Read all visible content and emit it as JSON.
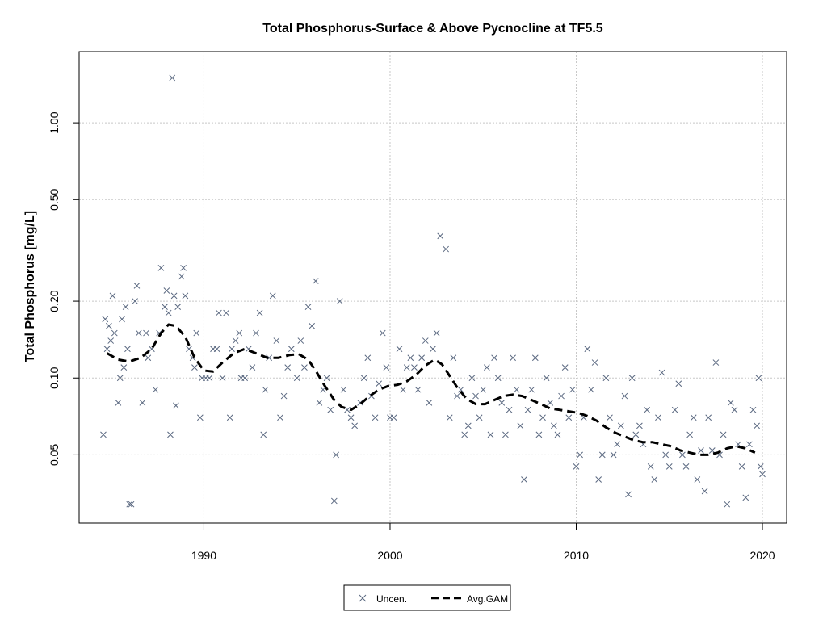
{
  "chart_data": {
    "type": "scatter",
    "title": "Total Phosphorus-Surface & Above Pycnocline at TF5.5",
    "xlabel": "",
    "ylabel": "Total Phosphorus [mg/L]",
    "x_scale": "linear",
    "y_scale": "log",
    "xlim": [
      1983.3,
      2021.3
    ],
    "ylim": [
      0.027,
      1.9
    ],
    "x_ticks": [
      1990,
      2000,
      2010,
      2020
    ],
    "x_tick_labels": [
      "1990",
      "2000",
      "2010",
      "2020"
    ],
    "y_ticks": [
      0.05,
      0.1,
      0.2,
      0.5,
      1.0
    ],
    "y_tick_labels": [
      "0.05",
      "0.10",
      "0.20",
      "0.50",
      "1.00"
    ],
    "grid": true,
    "legend_position": "bottom-center",
    "legend": [
      {
        "label": "Uncen.",
        "marker": "x",
        "color": "#5a6880"
      },
      {
        "label": "Avg.GAM",
        "line": "dashed",
        "color": "#000000"
      }
    ],
    "series": [
      {
        "name": "Uncen.",
        "marker": "x",
        "color": "#5a6880",
        "points": [
          [
            1984.6,
            0.06
          ],
          [
            1984.7,
            0.17
          ],
          [
            1984.8,
            0.13
          ],
          [
            1984.9,
            0.16
          ],
          [
            1985.0,
            0.14
          ],
          [
            1985.1,
            0.21
          ],
          [
            1985.2,
            0.15
          ],
          [
            1985.4,
            0.08
          ],
          [
            1985.5,
            0.1
          ],
          [
            1985.6,
            0.17
          ],
          [
            1985.7,
            0.11
          ],
          [
            1985.8,
            0.19
          ],
          [
            1985.9,
            0.13
          ],
          [
            1986.0,
            0.032
          ],
          [
            1986.1,
            0.032
          ],
          [
            1986.3,
            0.2
          ],
          [
            1986.4,
            0.23
          ],
          [
            1986.5,
            0.15
          ],
          [
            1986.7,
            0.08
          ],
          [
            1986.9,
            0.15
          ],
          [
            1987.0,
            0.12
          ],
          [
            1987.2,
            0.13
          ],
          [
            1987.4,
            0.09
          ],
          [
            1987.6,
            0.15
          ],
          [
            1987.7,
            0.27
          ],
          [
            1987.9,
            0.19
          ],
          [
            1988.0,
            0.22
          ],
          [
            1988.1,
            0.18
          ],
          [
            1988.2,
            0.06
          ],
          [
            1988.3,
            1.5
          ],
          [
            1988.4,
            0.21
          ],
          [
            1988.5,
            0.078
          ],
          [
            1988.6,
            0.19
          ],
          [
            1988.8,
            0.25
          ],
          [
            1988.9,
            0.27
          ],
          [
            1989.0,
            0.21
          ],
          [
            1989.2,
            0.13
          ],
          [
            1989.4,
            0.12
          ],
          [
            1989.5,
            0.11
          ],
          [
            1989.6,
            0.15
          ],
          [
            1989.8,
            0.07
          ],
          [
            1989.9,
            0.1
          ],
          [
            1990.1,
            0.1
          ],
          [
            1990.3,
            0.1
          ],
          [
            1990.5,
            0.13
          ],
          [
            1990.7,
            0.13
          ],
          [
            1990.8,
            0.18
          ],
          [
            1991.0,
            0.1
          ],
          [
            1991.2,
            0.18
          ],
          [
            1991.4,
            0.07
          ],
          [
            1991.5,
            0.13
          ],
          [
            1991.7,
            0.14
          ],
          [
            1991.9,
            0.15
          ],
          [
            1992.0,
            0.1
          ],
          [
            1992.2,
            0.1
          ],
          [
            1992.4,
            0.13
          ],
          [
            1992.6,
            0.11
          ],
          [
            1992.8,
            0.15
          ],
          [
            1993.0,
            0.18
          ],
          [
            1993.2,
            0.06
          ],
          [
            1993.3,
            0.09
          ],
          [
            1993.5,
            0.12
          ],
          [
            1993.7,
            0.21
          ],
          [
            1993.9,
            0.14
          ],
          [
            1994.1,
            0.07
          ],
          [
            1994.3,
            0.085
          ],
          [
            1994.5,
            0.11
          ],
          [
            1994.7,
            0.13
          ],
          [
            1995.0,
            0.1
          ],
          [
            1995.2,
            0.14
          ],
          [
            1995.4,
            0.11
          ],
          [
            1995.6,
            0.19
          ],
          [
            1995.8,
            0.16
          ],
          [
            1996.0,
            0.24
          ],
          [
            1996.2,
            0.08
          ],
          [
            1996.4,
            0.09
          ],
          [
            1996.6,
            0.1
          ],
          [
            1996.8,
            0.075
          ],
          [
            1997.0,
            0.033
          ],
          [
            1997.1,
            0.05
          ],
          [
            1997.3,
            0.2
          ],
          [
            1997.5,
            0.09
          ],
          [
            1997.7,
            0.075
          ],
          [
            1997.9,
            0.07
          ],
          [
            1998.1,
            0.065
          ],
          [
            1998.4,
            0.08
          ],
          [
            1998.6,
            0.1
          ],
          [
            1998.8,
            0.12
          ],
          [
            1999.0,
            0.085
          ],
          [
            1999.2,
            0.07
          ],
          [
            1999.4,
            0.095
          ],
          [
            1999.6,
            0.15
          ],
          [
            1999.8,
            0.11
          ],
          [
            2000.0,
            0.07
          ],
          [
            2000.2,
            0.07
          ],
          [
            2000.5,
            0.13
          ],
          [
            2000.7,
            0.09
          ],
          [
            2000.9,
            0.11
          ],
          [
            2001.1,
            0.12
          ],
          [
            2001.3,
            0.11
          ],
          [
            2001.5,
            0.09
          ],
          [
            2001.7,
            0.12
          ],
          [
            2001.9,
            0.14
          ],
          [
            2002.1,
            0.08
          ],
          [
            2002.3,
            0.13
          ],
          [
            2002.5,
            0.15
          ],
          [
            2002.7,
            0.36
          ],
          [
            2003.0,
            0.32
          ],
          [
            2003.2,
            0.07
          ],
          [
            2003.4,
            0.12
          ],
          [
            2003.6,
            0.085
          ],
          [
            2003.8,
            0.09
          ],
          [
            2004.0,
            0.06
          ],
          [
            2004.2,
            0.065
          ],
          [
            2004.4,
            0.1
          ],
          [
            2004.6,
            0.085
          ],
          [
            2004.8,
            0.07
          ],
          [
            2005.0,
            0.09
          ],
          [
            2005.2,
            0.11
          ],
          [
            2005.4,
            0.06
          ],
          [
            2005.6,
            0.12
          ],
          [
            2005.8,
            0.1
          ],
          [
            2006.0,
            0.08
          ],
          [
            2006.2,
            0.06
          ],
          [
            2006.4,
            0.075
          ],
          [
            2006.6,
            0.12
          ],
          [
            2006.8,
            0.09
          ],
          [
            2007.0,
            0.065
          ],
          [
            2007.2,
            0.04
          ],
          [
            2007.4,
            0.075
          ],
          [
            2007.6,
            0.09
          ],
          [
            2007.8,
            0.12
          ],
          [
            2008.0,
            0.06
          ],
          [
            2008.2,
            0.07
          ],
          [
            2008.4,
            0.1
          ],
          [
            2008.6,
            0.08
          ],
          [
            2008.8,
            0.065
          ],
          [
            2009.0,
            0.06
          ],
          [
            2009.2,
            0.085
          ],
          [
            2009.4,
            0.11
          ],
          [
            2009.6,
            0.07
          ],
          [
            2009.8,
            0.09
          ],
          [
            2010.0,
            0.045
          ],
          [
            2010.2,
            0.05
          ],
          [
            2010.4,
            0.07
          ],
          [
            2010.6,
            0.13
          ],
          [
            2010.8,
            0.09
          ],
          [
            2011.0,
            0.115
          ],
          [
            2011.2,
            0.04
          ],
          [
            2011.4,
            0.05
          ],
          [
            2011.6,
            0.1
          ],
          [
            2011.8,
            0.07
          ],
          [
            2012.0,
            0.05
          ],
          [
            2012.2,
            0.055
          ],
          [
            2012.4,
            0.065
          ],
          [
            2012.6,
            0.085
          ],
          [
            2012.8,
            0.035
          ],
          [
            2013.0,
            0.1
          ],
          [
            2013.2,
            0.06
          ],
          [
            2013.4,
            0.065
          ],
          [
            2013.6,
            0.055
          ],
          [
            2013.8,
            0.075
          ],
          [
            2014.0,
            0.045
          ],
          [
            2014.2,
            0.04
          ],
          [
            2014.4,
            0.07
          ],
          [
            2014.6,
            0.105
          ],
          [
            2014.8,
            0.05
          ],
          [
            2015.0,
            0.045
          ],
          [
            2015.3,
            0.075
          ],
          [
            2015.5,
            0.095
          ],
          [
            2015.7,
            0.05
          ],
          [
            2015.9,
            0.045
          ],
          [
            2016.1,
            0.06
          ],
          [
            2016.3,
            0.07
          ],
          [
            2016.5,
            0.04
          ],
          [
            2016.7,
            0.052
          ],
          [
            2016.9,
            0.036
          ],
          [
            2017.1,
            0.07
          ],
          [
            2017.3,
            0.052
          ],
          [
            2017.5,
            0.115
          ],
          [
            2017.7,
            0.05
          ],
          [
            2017.9,
            0.06
          ],
          [
            2018.1,
            0.032
          ],
          [
            2018.3,
            0.08
          ],
          [
            2018.5,
            0.075
          ],
          [
            2018.7,
            0.055
          ],
          [
            2018.9,
            0.045
          ],
          [
            2019.1,
            0.034
          ],
          [
            2019.3,
            0.055
          ],
          [
            2019.5,
            0.075
          ],
          [
            2019.7,
            0.065
          ],
          [
            2019.8,
            0.1
          ],
          [
            2019.9,
            0.045
          ],
          [
            2020.0,
            0.042
          ]
        ]
      },
      {
        "name": "Avg.GAM",
        "line": "dashed",
        "color": "#000000",
        "points": [
          [
            1984.8,
            0.125
          ],
          [
            1985.4,
            0.118
          ],
          [
            1986.0,
            0.116
          ],
          [
            1986.6,
            0.12
          ],
          [
            1987.2,
            0.13
          ],
          [
            1987.7,
            0.15
          ],
          [
            1988.1,
            0.162
          ],
          [
            1988.5,
            0.16
          ],
          [
            1989.0,
            0.145
          ],
          [
            1989.5,
            0.12
          ],
          [
            1990.0,
            0.107
          ],
          [
            1990.5,
            0.106
          ],
          [
            1991.0,
            0.115
          ],
          [
            1991.6,
            0.125
          ],
          [
            1992.2,
            0.13
          ],
          [
            1992.8,
            0.125
          ],
          [
            1993.4,
            0.12
          ],
          [
            1994.0,
            0.12
          ],
          [
            1994.6,
            0.123
          ],
          [
            1995.1,
            0.124
          ],
          [
            1995.6,
            0.118
          ],
          [
            1996.0,
            0.107
          ],
          [
            1996.5,
            0.093
          ],
          [
            1997.0,
            0.082
          ],
          [
            1997.4,
            0.077
          ],
          [
            1997.9,
            0.075
          ],
          [
            1998.4,
            0.079
          ],
          [
            1998.9,
            0.085
          ],
          [
            1999.4,
            0.09
          ],
          [
            1999.9,
            0.093
          ],
          [
            2000.4,
            0.094
          ],
          [
            2000.9,
            0.097
          ],
          [
            2001.4,
            0.103
          ],
          [
            2001.9,
            0.112
          ],
          [
            2002.4,
            0.118
          ],
          [
            2002.8,
            0.113
          ],
          [
            2003.2,
            0.102
          ],
          [
            2003.6,
            0.092
          ],
          [
            2004.1,
            0.083
          ],
          [
            2004.6,
            0.079
          ],
          [
            2005.1,
            0.079
          ],
          [
            2005.6,
            0.082
          ],
          [
            2006.1,
            0.085
          ],
          [
            2006.6,
            0.086
          ],
          [
            2007.1,
            0.085
          ],
          [
            2007.6,
            0.082
          ],
          [
            2008.1,
            0.079
          ],
          [
            2008.6,
            0.076
          ],
          [
            2009.1,
            0.075
          ],
          [
            2009.6,
            0.074
          ],
          [
            2010.1,
            0.073
          ],
          [
            2010.6,
            0.071
          ],
          [
            2011.1,
            0.068
          ],
          [
            2011.6,
            0.064
          ],
          [
            2012.1,
            0.061
          ],
          [
            2012.6,
            0.059
          ],
          [
            2013.1,
            0.057
          ],
          [
            2013.6,
            0.056
          ],
          [
            2014.1,
            0.056
          ],
          [
            2014.6,
            0.055
          ],
          [
            2015.1,
            0.054
          ],
          [
            2015.6,
            0.052
          ],
          [
            2016.1,
            0.051
          ],
          [
            2016.6,
            0.05
          ],
          [
            2017.1,
            0.05
          ],
          [
            2017.6,
            0.051
          ],
          [
            2018.1,
            0.053
          ],
          [
            2018.6,
            0.054
          ],
          [
            2019.1,
            0.053
          ],
          [
            2019.6,
            0.051
          ]
        ]
      }
    ]
  }
}
